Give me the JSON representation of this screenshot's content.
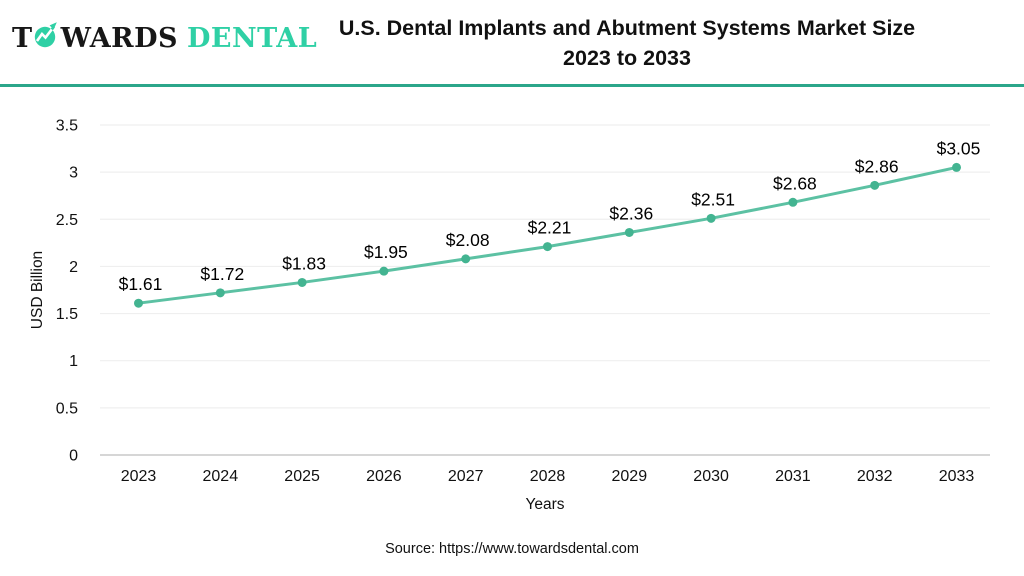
{
  "logo": {
    "prefix": "T",
    "rest": "WARDS",
    "brand": "DENTAL",
    "icon": "growth-arrow-circle-icon"
  },
  "header": {
    "title_line1": "U.S. Dental Implants and Abutment Systems Market Size",
    "title_line2": "2023 to 2033"
  },
  "source": "Source: https://www.towardsdental.com",
  "colors": {
    "accent_divider": "#2ba68a",
    "line": "#5cc1a3",
    "marker": "#43b491",
    "logo_teal": "#2fd0a5",
    "grid": "#efefef",
    "axis": "#c9c9c9",
    "text": "#111111"
  },
  "chart_data": {
    "type": "line",
    "title": "U.S. Dental Implants and Abutment Systems Market Size 2023 to 2033",
    "categories": [
      "2023",
      "2024",
      "2025",
      "2026",
      "2027",
      "2028",
      "2029",
      "2030",
      "2031",
      "2032",
      "2033"
    ],
    "values": [
      1.61,
      1.72,
      1.83,
      1.95,
      2.08,
      2.21,
      2.36,
      2.51,
      2.68,
      2.86,
      3.05
    ],
    "point_labels": [
      "$1.61",
      "$1.72",
      "$1.83",
      "$1.95",
      "$2.08",
      "$2.21",
      "$2.36",
      "$2.51",
      "$2.68",
      "$2.86",
      "$3.05"
    ],
    "xlabel": "Years",
    "ylabel": "USD Billion",
    "ylim": [
      0,
      3.5
    ],
    "yticks": [
      "0",
      "0.5",
      "1",
      "1.5",
      "2",
      "2.5",
      "3",
      "3.5"
    ],
    "grid": true,
    "legend_position": "none"
  }
}
